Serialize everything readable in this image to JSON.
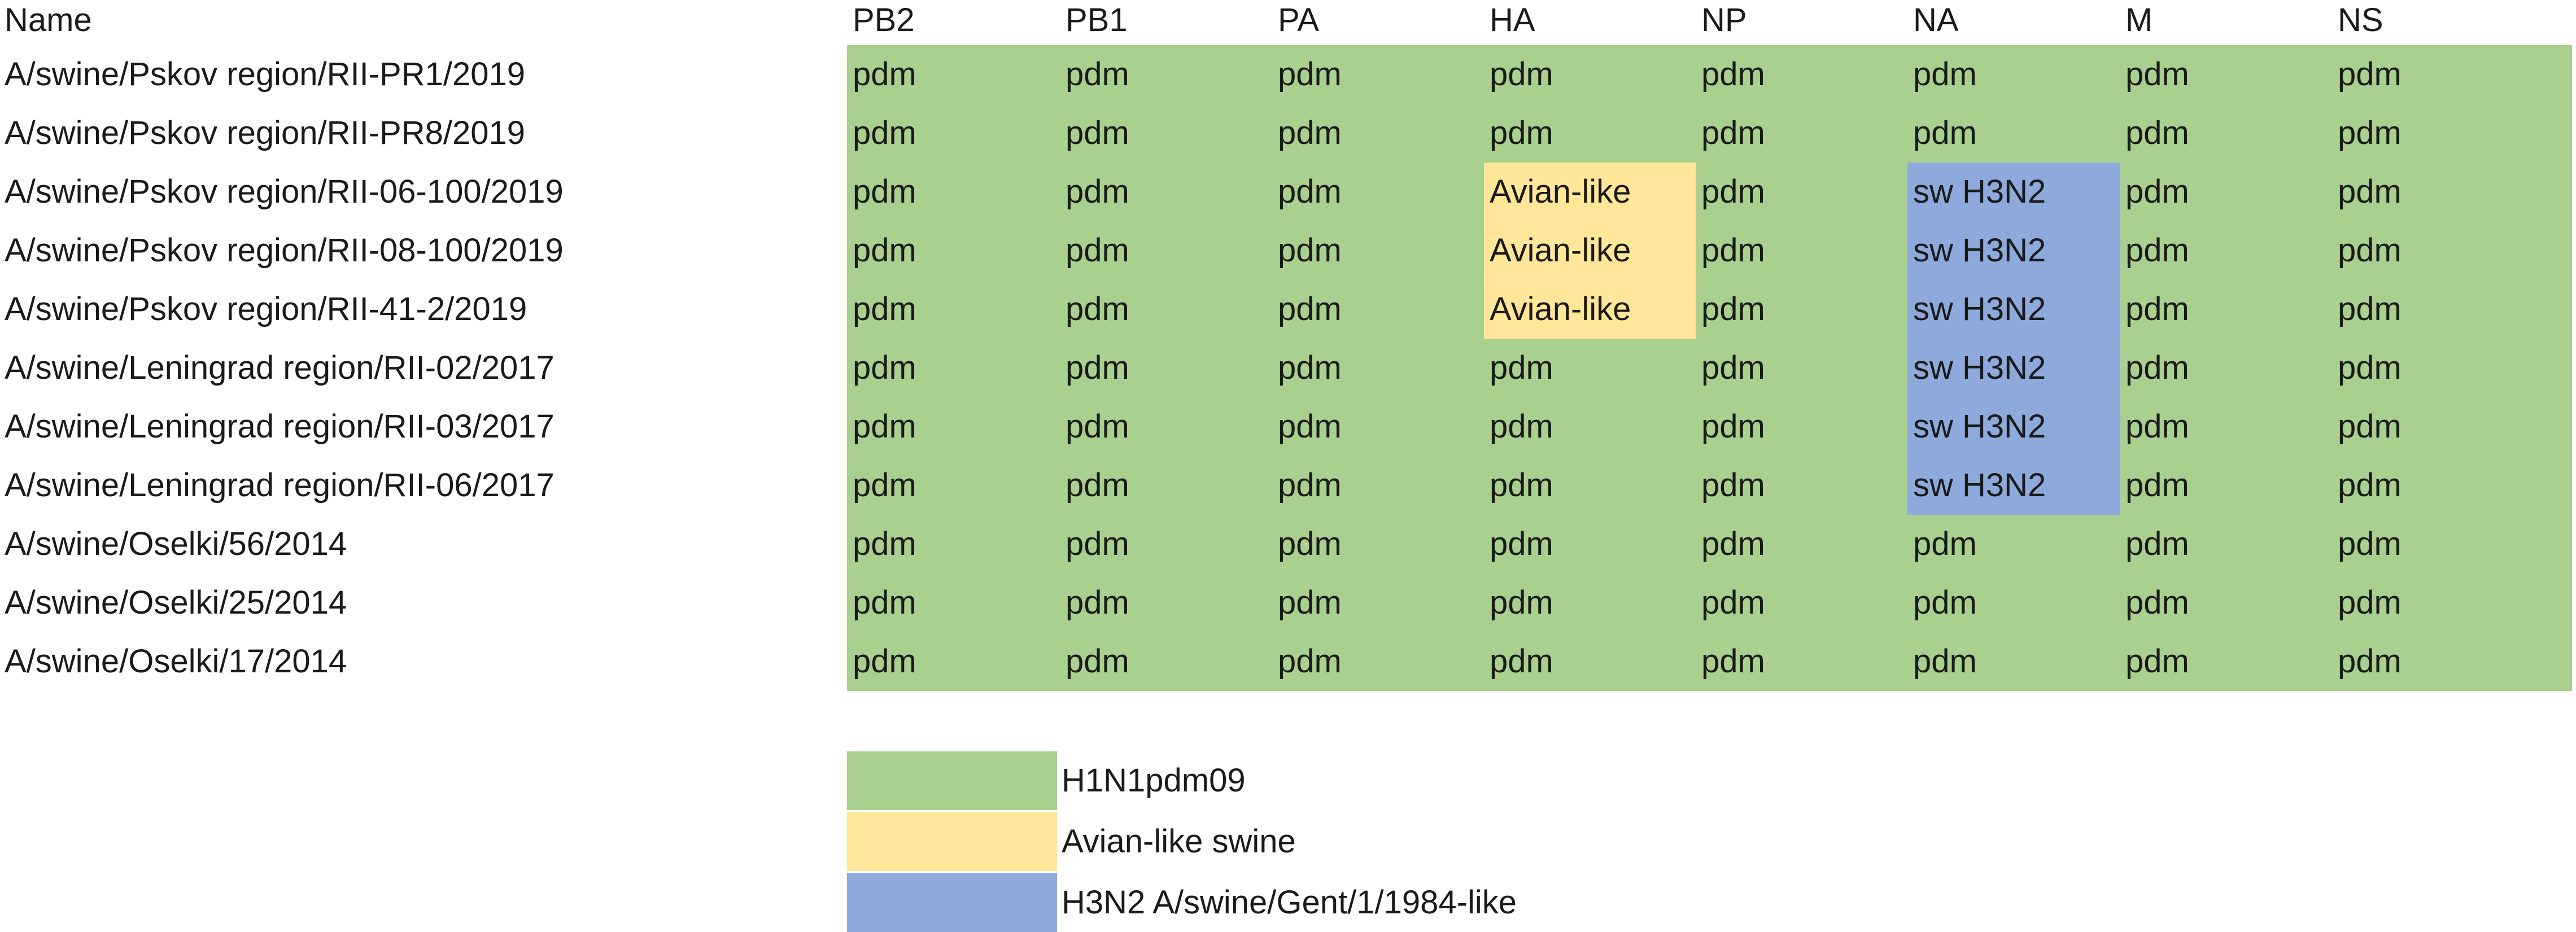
{
  "colors": {
    "pdm": "#a9d08e",
    "avian": "#ffe699",
    "h3n2": "#8ea9db"
  },
  "table": {
    "header_name": "Name",
    "columns": [
      "PB2",
      "PB1",
      "PA",
      "HA",
      "NP",
      "NA",
      "M",
      "NS"
    ],
    "rows": [
      {
        "name": "A/swine/Pskov region/RII-PR1/2019",
        "cells": [
          "pdm",
          "pdm",
          "pdm",
          "pdm",
          "pdm",
          "pdm",
          "pdm",
          "pdm"
        ]
      },
      {
        "name": "A/swine/Pskov region/RII-PR8/2019",
        "cells": [
          "pdm",
          "pdm",
          "pdm",
          "pdm",
          "pdm",
          "pdm",
          "pdm",
          "pdm"
        ]
      },
      {
        "name": "A/swine/Pskov region/RII-06-100/2019",
        "cells": [
          "pdm",
          "pdm",
          "pdm",
          "Avian-like",
          "pdm",
          "sw H3N2",
          "pdm",
          "pdm"
        ]
      },
      {
        "name": "A/swine/Pskov region/RII-08-100/2019",
        "cells": [
          "pdm",
          "pdm",
          "pdm",
          "Avian-like",
          "pdm",
          "sw H3N2",
          "pdm",
          "pdm"
        ]
      },
      {
        "name": "A/swine/Pskov region/RII-41-2/2019",
        "cells": [
          "pdm",
          "pdm",
          "pdm",
          "Avian-like",
          "pdm",
          "sw H3N2",
          "pdm",
          "pdm"
        ]
      },
      {
        "name": "A/swine/Leningrad region/RII-02/2017",
        "cells": [
          "pdm",
          "pdm",
          "pdm",
          "pdm",
          "pdm",
          "sw H3N2",
          "pdm",
          "pdm"
        ]
      },
      {
        "name": "A/swine/Leningrad region/RII-03/2017",
        "cells": [
          "pdm",
          "pdm",
          "pdm",
          "pdm",
          "pdm",
          "sw H3N2",
          "pdm",
          "pdm"
        ]
      },
      {
        "name": "A/swine/Leningrad region/RII-06/2017",
        "cells": [
          "pdm",
          "pdm",
          "pdm",
          "pdm",
          "pdm",
          "sw H3N2",
          "pdm",
          "pdm"
        ]
      },
      {
        "name": "A/swine/Oselki/56/2014",
        "cells": [
          "pdm",
          "pdm",
          "pdm",
          "pdm",
          "pdm",
          "pdm",
          "pdm",
          "pdm"
        ]
      },
      {
        "name": "A/swine/Oselki/25/2014",
        "cells": [
          "pdm",
          "pdm",
          "pdm",
          "pdm",
          "pdm",
          "pdm",
          "pdm",
          "pdm"
        ]
      },
      {
        "name": "A/swine/Oselki/17/2014",
        "cells": [
          "pdm",
          "pdm",
          "pdm",
          "pdm",
          "pdm",
          "pdm",
          "pdm",
          "pdm"
        ]
      }
    ]
  },
  "legend": [
    {
      "label": "H1N1pdm09",
      "color": "#a9d08e"
    },
    {
      "label": "Avian-like swine",
      "color": "#ffe699"
    },
    {
      "label": "H3N2 A/swine/Gent/1/1984-like",
      "color": "#8ea9db"
    }
  ]
}
